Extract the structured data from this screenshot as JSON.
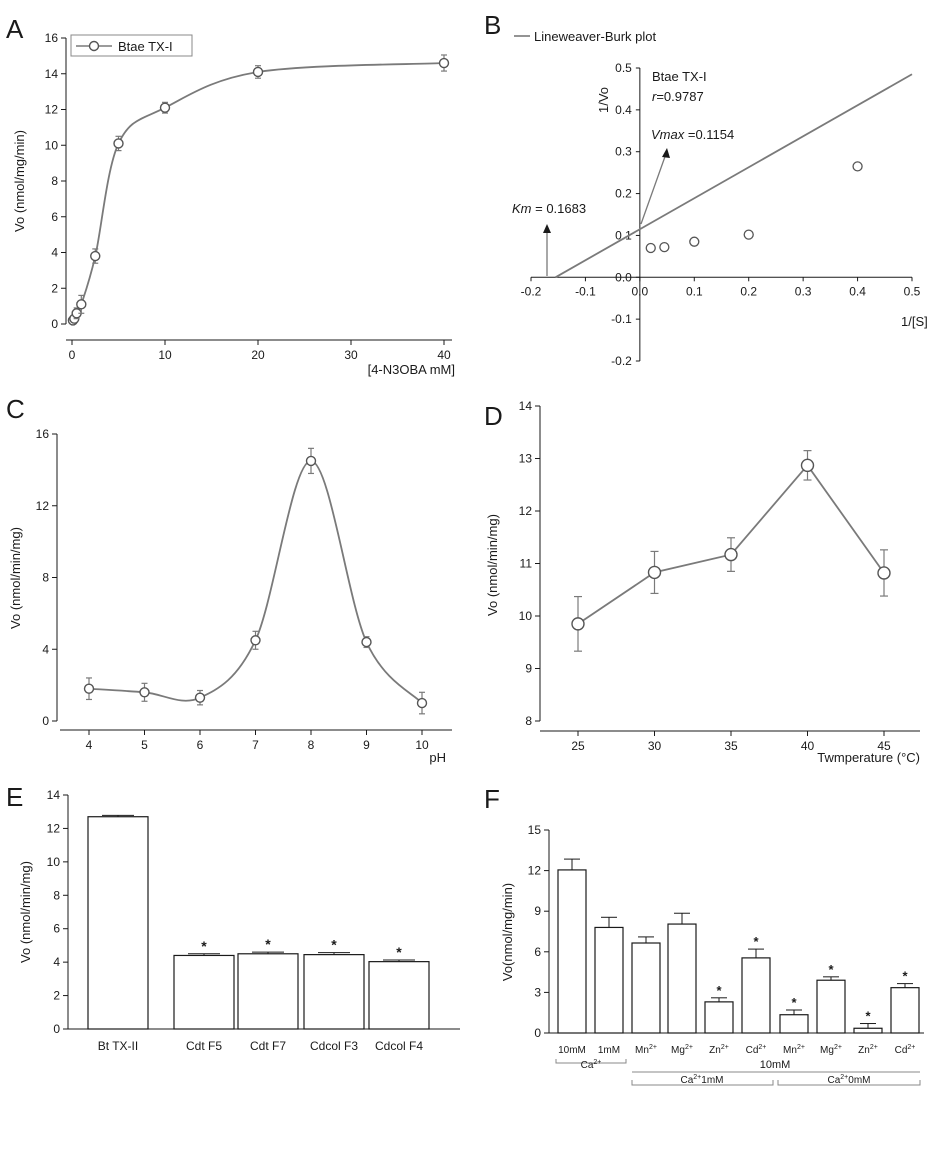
{
  "chart_data": [
    {
      "panel": "A",
      "type": "line",
      "xlabel": "[4-N3OBA mM]",
      "ylabel": "Vo (nmol/mg/min)",
      "xlim": [
        0,
        40
      ],
      "ylim": [
        0,
        16
      ],
      "xticks": [
        0,
        10,
        20,
        30,
        40
      ],
      "yticks": [
        0,
        2,
        4,
        6,
        8,
        10,
        12,
        14,
        16
      ],
      "legend": "top-left",
      "series": [
        {
          "name": "Btae TX-I",
          "x": [
            0.1,
            0.25,
            0.5,
            1,
            2.5,
            5,
            10,
            20,
            40
          ],
          "y": [
            0.2,
            0.3,
            0.6,
            1.1,
            3.8,
            10.1,
            12.1,
            14.1,
            14.6
          ],
          "err": [
            0.15,
            0.15,
            0.3,
            0.5,
            0.4,
            0.4,
            0.3,
            0.35,
            0.45
          ]
        }
      ]
    },
    {
      "panel": "B",
      "type": "scatter",
      "xlabel": "1/[S]",
      "ylabel": "1/Vo",
      "xlim": [
        -0.2,
        0.5
      ],
      "ylim": [
        -0.2,
        0.5
      ],
      "xticks": [
        -0.2,
        -0.1,
        0.0,
        0.1,
        0.2,
        0.3,
        0.4,
        0.5
      ],
      "yticks": [
        -0.2,
        -0.1,
        0.0,
        0.1,
        0.2,
        0.3,
        0.4,
        0.5
      ],
      "legend": "top-left",
      "line_name": "Lineweaver-Burk plot",
      "line": {
        "x": [
          -0.155,
          0.5
        ],
        "y": [
          0.0,
          0.485
        ]
      },
      "points": {
        "x": [
          0.02,
          0.045,
          0.1,
          0.2,
          0.4
        ],
        "y": [
          0.07,
          0.072,
          0.085,
          0.102,
          0.265
        ]
      },
      "annotations": {
        "title": "Btae TX-I",
        "r_symbol": "r",
        "r_value": "=0.9787",
        "vmax_symbol": "Vmax",
        "vmax_value": " =0.1154",
        "km_symbol": "Km",
        "km_value": " = 0.1683"
      }
    },
    {
      "panel": "C",
      "type": "line",
      "xlabel": "pH",
      "ylabel": "Vo (nmol/min/mg)",
      "xlim": [
        3.5,
        10.5
      ],
      "ylim": [
        0,
        16
      ],
      "xticks": [
        4,
        5,
        6,
        7,
        8,
        9,
        10
      ],
      "yticks": [
        0,
        4,
        8,
        12,
        16
      ],
      "series": [
        {
          "x": [
            4,
            5,
            6,
            7,
            8,
            9,
            10
          ],
          "y": [
            1.8,
            1.6,
            1.3,
            4.5,
            14.5,
            4.4,
            1.0
          ],
          "err": [
            0.6,
            0.5,
            0.4,
            0.5,
            0.7,
            0.3,
            0.6
          ]
        }
      ]
    },
    {
      "panel": "D",
      "type": "line",
      "xlabel": "Twmperature (°C)",
      "ylabel": "Vo (nmol/min/mg)",
      "xlim": [
        22,
        48
      ],
      "ylim": [
        8,
        14
      ],
      "xticks": [
        25,
        30,
        35,
        40,
        45
      ],
      "yticks": [
        8,
        9,
        10,
        11,
        12,
        13,
        14
      ],
      "series": [
        {
          "x": [
            25,
            30,
            35,
            40,
            45
          ],
          "y": [
            9.85,
            10.83,
            11.17,
            12.87,
            10.82
          ],
          "err": [
            0.52,
            0.4,
            0.32,
            0.28,
            0.44
          ]
        }
      ]
    },
    {
      "panel": "E",
      "type": "bar",
      "ylabel": "Vo (nmol/min/mg)",
      "ylim": [
        0,
        14
      ],
      "yticks": [
        0,
        2,
        4,
        6,
        8,
        10,
        12,
        14
      ],
      "categories": [
        "Bt TX-II",
        "Cdt F5",
        "Cdt F7",
        "Cdcol F3",
        "Cdcol F4"
      ],
      "values": [
        12.7,
        4.4,
        4.5,
        4.45,
        4.03
      ],
      "err": [
        0.08,
        0.1,
        0.1,
        0.12,
        0.1
      ],
      "significant": [
        "",
        "*",
        "*",
        "*",
        "*"
      ]
    },
    {
      "panel": "F",
      "type": "bar",
      "ylabel": "Vo(nmol/mg/min)",
      "ylim": [
        0,
        15
      ],
      "yticks": [
        0,
        3,
        6,
        9,
        12,
        15
      ],
      "categories": [
        "10mM",
        "1mM",
        "Mn2+",
        "Mg2+",
        "Zn2+",
        "Cd2+",
        "Mn2+",
        "Mg2+",
        "Zn2+",
        "Cd2+"
      ],
      "values": [
        12.05,
        7.8,
        6.65,
        8.05,
        2.3,
        5.55,
        1.35,
        3.9,
        0.35,
        3.35
      ],
      "err": [
        0.8,
        0.75,
        0.45,
        0.8,
        0.3,
        0.65,
        0.35,
        0.25,
        0.35,
        0.3
      ],
      "significant": [
        "",
        "",
        "",
        "",
        "*",
        "*",
        "*",
        "*",
        "*",
        "*"
      ],
      "group_labels": {
        "ca": "Ca",
        "ca_sup": "2+",
        "top": "10mM",
        "ca1_a": "Ca",
        "ca1_sup": "2+",
        "ca1_b": "1mM",
        "ca0_a": "Ca",
        "ca0_sup": "2+",
        "ca0_b": "0mM"
      }
    }
  ],
  "panel_letters": [
    "A",
    "B",
    "C",
    "D",
    "E",
    "F"
  ],
  "colors": {
    "ink": "#1a1a1a",
    "curve": "#7a7a7a",
    "marker_edge": "#555555"
  }
}
